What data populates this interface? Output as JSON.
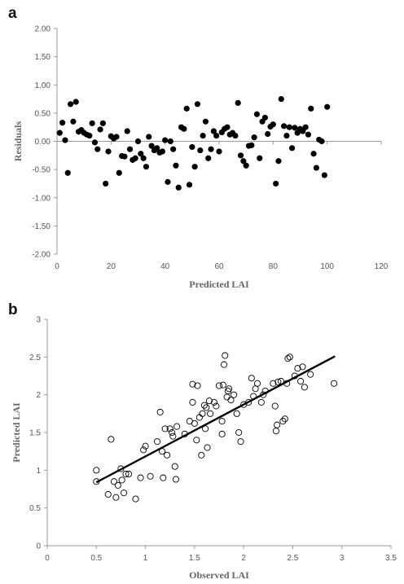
{
  "chart_data": [
    {
      "panel_label": "a",
      "type": "scatter",
      "xlabel": "Predicted LAI",
      "ylabel": "Residuals",
      "xlim": [
        0,
        120
      ],
      "ylim": [
        -2,
        2
      ],
      "xticks": [
        "0",
        "20",
        "40",
        "60",
        "80",
        "100",
        "120"
      ],
      "yticks": [
        "-2.00",
        "-1.50",
        "-1.00",
        "-0.50",
        "0.00",
        "0.50",
        "1.00",
        "1.50",
        "2.00"
      ],
      "grid": false,
      "marker": "filled-circle",
      "marker_color": "#000000",
      "x": [
        1,
        2,
        3,
        4,
        5,
        6,
        7,
        8,
        9,
        10,
        11,
        12,
        13,
        14,
        15,
        16,
        17,
        18,
        19,
        20,
        21,
        22,
        23,
        24,
        25,
        26,
        27,
        28,
        29,
        30,
        31,
        32,
        33,
        34,
        35,
        36,
        37,
        38,
        39,
        40,
        41,
        42,
        43,
        44,
        45,
        46,
        47,
        48,
        49,
        50,
        51,
        52,
        53,
        54,
        55,
        56,
        57,
        58,
        59,
        60,
        61,
        62,
        63,
        64,
        65,
        66,
        67,
        68,
        69,
        70,
        71,
        72,
        73,
        74,
        75,
        76,
        77,
        78,
        79,
        80,
        81,
        82,
        83,
        84,
        85,
        86,
        87,
        88,
        89,
        90,
        91,
        92,
        93,
        94,
        95,
        96,
        97,
        98,
        99,
        100
      ],
      "y": [
        0.15,
        0.33,
        0.02,
        -0.56,
        0.66,
        0.35,
        0.7,
        0.17,
        0.2,
        0.15,
        0.12,
        0.1,
        0.32,
        -0.02,
        -0.14,
        0.21,
        0.32,
        -0.75,
        -0.18,
        0.09,
        0.05,
        0.08,
        -0.56,
        -0.26,
        -0.27,
        0.18,
        -0.14,
        -0.33,
        -0.3,
        0.0,
        -0.22,
        -0.3,
        -0.45,
        0.08,
        -0.08,
        -0.16,
        -0.12,
        -0.2,
        -0.18,
        0.02,
        -0.72,
        0.0,
        -0.14,
        -0.43,
        -0.82,
        0.25,
        0.22,
        0.58,
        -0.77,
        -0.1,
        -0.45,
        0.66,
        -0.16,
        0.1,
        0.35,
        -0.3,
        -0.14,
        0.18,
        0.1,
        -0.18,
        0.16,
        0.22,
        0.25,
        0.12,
        0.15,
        0.1,
        0.68,
        -0.25,
        -0.35,
        -0.43,
        -0.08,
        -0.07,
        0.07,
        0.48,
        -0.3,
        0.35,
        0.42,
        0.13,
        0.26,
        0.3,
        -0.75,
        -0.35,
        0.75,
        0.27,
        0.1,
        0.25,
        -0.12,
        0.24,
        0.15,
        0.22,
        0.18,
        0.25,
        0.12,
        0.58,
        -0.22,
        -0.47,
        0.03,
        0.0,
        -0.6,
        0.61
      ]
    },
    {
      "panel_label": "b",
      "type": "scatter",
      "xlabel": "Observed LAI",
      "ylabel": "Predicted LAI",
      "xlim": [
        0,
        3.5
      ],
      "ylim": [
        0,
        3
      ],
      "xticks": [
        "0",
        "0.5",
        "1",
        "1.5",
        "2",
        "2.5",
        "3",
        "3.5"
      ],
      "yticks": [
        "0",
        "0.5",
        "1",
        "1.5",
        "2",
        "2.5",
        "3"
      ],
      "grid": false,
      "marker": "open-circle",
      "marker_color": "#000000",
      "fit_line": {
        "x": [
          0.5,
          2.93
        ],
        "y": [
          0.84,
          2.51
        ]
      },
      "points": [
        [
          0.5,
          1.0
        ],
        [
          0.5,
          0.85
        ],
        [
          0.62,
          0.68
        ],
        [
          0.65,
          1.41
        ],
        [
          0.68,
          0.85
        ],
        [
          0.7,
          0.64
        ],
        [
          0.72,
          0.8
        ],
        [
          0.75,
          1.02
        ],
        [
          0.76,
          0.87
        ],
        [
          0.78,
          0.7
        ],
        [
          0.8,
          0.95
        ],
        [
          0.83,
          0.95
        ],
        [
          0.9,
          0.62
        ],
        [
          0.95,
          0.9
        ],
        [
          0.98,
          1.27
        ],
        [
          1.0,
          1.32
        ],
        [
          1.05,
          0.92
        ],
        [
          1.12,
          1.38
        ],
        [
          1.15,
          1.77
        ],
        [
          1.17,
          1.25
        ],
        [
          1.18,
          0.9
        ],
        [
          1.2,
          1.55
        ],
        [
          1.22,
          1.2
        ],
        [
          1.25,
          1.55
        ],
        [
          1.27,
          1.5
        ],
        [
          1.28,
          1.45
        ],
        [
          1.3,
          1.05
        ],
        [
          1.31,
          0.88
        ],
        [
          1.32,
          1.58
        ],
        [
          1.4,
          1.48
        ],
        [
          1.45,
          1.65
        ],
        [
          1.48,
          1.9
        ],
        [
          1.48,
          2.14
        ],
        [
          1.5,
          1.62
        ],
        [
          1.52,
          1.4
        ],
        [
          1.53,
          2.12
        ],
        [
          1.55,
          1.7
        ],
        [
          1.57,
          1.2
        ],
        [
          1.58,
          1.75
        ],
        [
          1.6,
          1.86
        ],
        [
          1.61,
          1.55
        ],
        [
          1.62,
          1.83
        ],
        [
          1.63,
          1.3
        ],
        [
          1.65,
          1.92
        ],
        [
          1.66,
          1.75
        ],
        [
          1.7,
          1.9
        ],
        [
          1.72,
          1.85
        ],
        [
          1.75,
          2.12
        ],
        [
          1.78,
          1.65
        ],
        [
          1.78,
          1.48
        ],
        [
          1.79,
          2.13
        ],
        [
          1.8,
          2.4
        ],
        [
          1.81,
          2.52
        ],
        [
          1.83,
          1.97
        ],
        [
          1.84,
          2.05
        ],
        [
          1.85,
          2.08
        ],
        [
          1.87,
          1.93
        ],
        [
          1.9,
          2.0
        ],
        [
          1.93,
          1.75
        ],
        [
          1.95,
          1.5
        ],
        [
          1.97,
          1.38
        ],
        [
          2.0,
          1.87
        ],
        [
          2.05,
          1.9
        ],
        [
          2.08,
          2.22
        ],
        [
          2.1,
          1.98
        ],
        [
          2.12,
          2.08
        ],
        [
          2.14,
          2.15
        ],
        [
          2.18,
          1.9
        ],
        [
          2.2,
          2.0
        ],
        [
          2.22,
          2.05
        ],
        [
          2.3,
          2.15
        ],
        [
          2.32,
          1.85
        ],
        [
          2.33,
          1.52
        ],
        [
          2.34,
          1.6
        ],
        [
          2.35,
          2.17
        ],
        [
          2.38,
          2.18
        ],
        [
          2.4,
          1.65
        ],
        [
          2.42,
          1.68
        ],
        [
          2.44,
          2.15
        ],
        [
          2.45,
          2.48
        ],
        [
          2.47,
          2.5
        ],
        [
          2.52,
          2.25
        ],
        [
          2.55,
          2.35
        ],
        [
          2.58,
          2.18
        ],
        [
          2.6,
          2.37
        ],
        [
          2.62,
          2.1
        ],
        [
          2.68,
          2.27
        ],
        [
          2.92,
          2.15
        ]
      ]
    }
  ]
}
